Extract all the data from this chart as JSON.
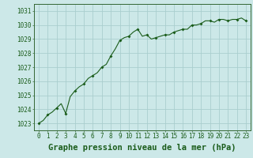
{
  "x": [
    0,
    0.5,
    1,
    1.5,
    2,
    2.5,
    3,
    3.5,
    4,
    4.5,
    5,
    5.5,
    6,
    6.5,
    7,
    7.5,
    8,
    8.5,
    9,
    9.5,
    10,
    10.5,
    11,
    11.5,
    12,
    12.5,
    13,
    13.5,
    14,
    14.5,
    15,
    15.5,
    16,
    16.5,
    17,
    17.5,
    18,
    18.5,
    19,
    19.5,
    20,
    20.5,
    21,
    21.5,
    22,
    22.5,
    23
  ],
  "y": [
    1023.0,
    1023.2,
    1023.6,
    1023.8,
    1024.1,
    1024.4,
    1023.7,
    1024.9,
    1025.3,
    1025.6,
    1025.8,
    1026.2,
    1026.4,
    1026.6,
    1027.0,
    1027.2,
    1027.8,
    1028.3,
    1028.9,
    1029.1,
    1029.2,
    1029.5,
    1029.7,
    1029.2,
    1029.3,
    1029.0,
    1029.1,
    1029.2,
    1029.3,
    1029.3,
    1029.5,
    1029.6,
    1029.7,
    1029.7,
    1030.0,
    1030.0,
    1030.1,
    1030.3,
    1030.3,
    1030.2,
    1030.4,
    1030.4,
    1030.3,
    1030.4,
    1030.4,
    1030.5,
    1030.3
  ],
  "marker_x": [
    0,
    1,
    2,
    3,
    4,
    5,
    6,
    7,
    8,
    9,
    10,
    11,
    12,
    13,
    14,
    15,
    16,
    17,
    18,
    19,
    20,
    21,
    22,
    23
  ],
  "marker_y": [
    1023.0,
    1023.6,
    1024.1,
    1023.7,
    1025.3,
    1025.8,
    1026.4,
    1027.0,
    1027.8,
    1028.9,
    1029.2,
    1029.7,
    1029.3,
    1029.1,
    1029.3,
    1029.5,
    1029.7,
    1030.0,
    1030.1,
    1030.3,
    1030.4,
    1030.3,
    1030.4,
    1030.3
  ],
  "ylim": [
    1022.5,
    1031.5
  ],
  "xlim": [
    -0.5,
    23.5
  ],
  "yticks": [
    1023,
    1024,
    1025,
    1026,
    1027,
    1028,
    1029,
    1030,
    1031
  ],
  "xticks": [
    0,
    1,
    2,
    3,
    4,
    5,
    6,
    7,
    8,
    9,
    10,
    11,
    12,
    13,
    14,
    15,
    16,
    17,
    18,
    19,
    20,
    21,
    22,
    23
  ],
  "xlabel": "Graphe pression niveau de la mer (hPa)",
  "line_color": "#1a5c1a",
  "bg_color": "#cce8e8",
  "grid_color": "#aacece",
  "border_color": "#336633",
  "text_color": "#1a5c1a",
  "tick_fontsize": 5.5,
  "xlabel_fontsize": 7.5
}
